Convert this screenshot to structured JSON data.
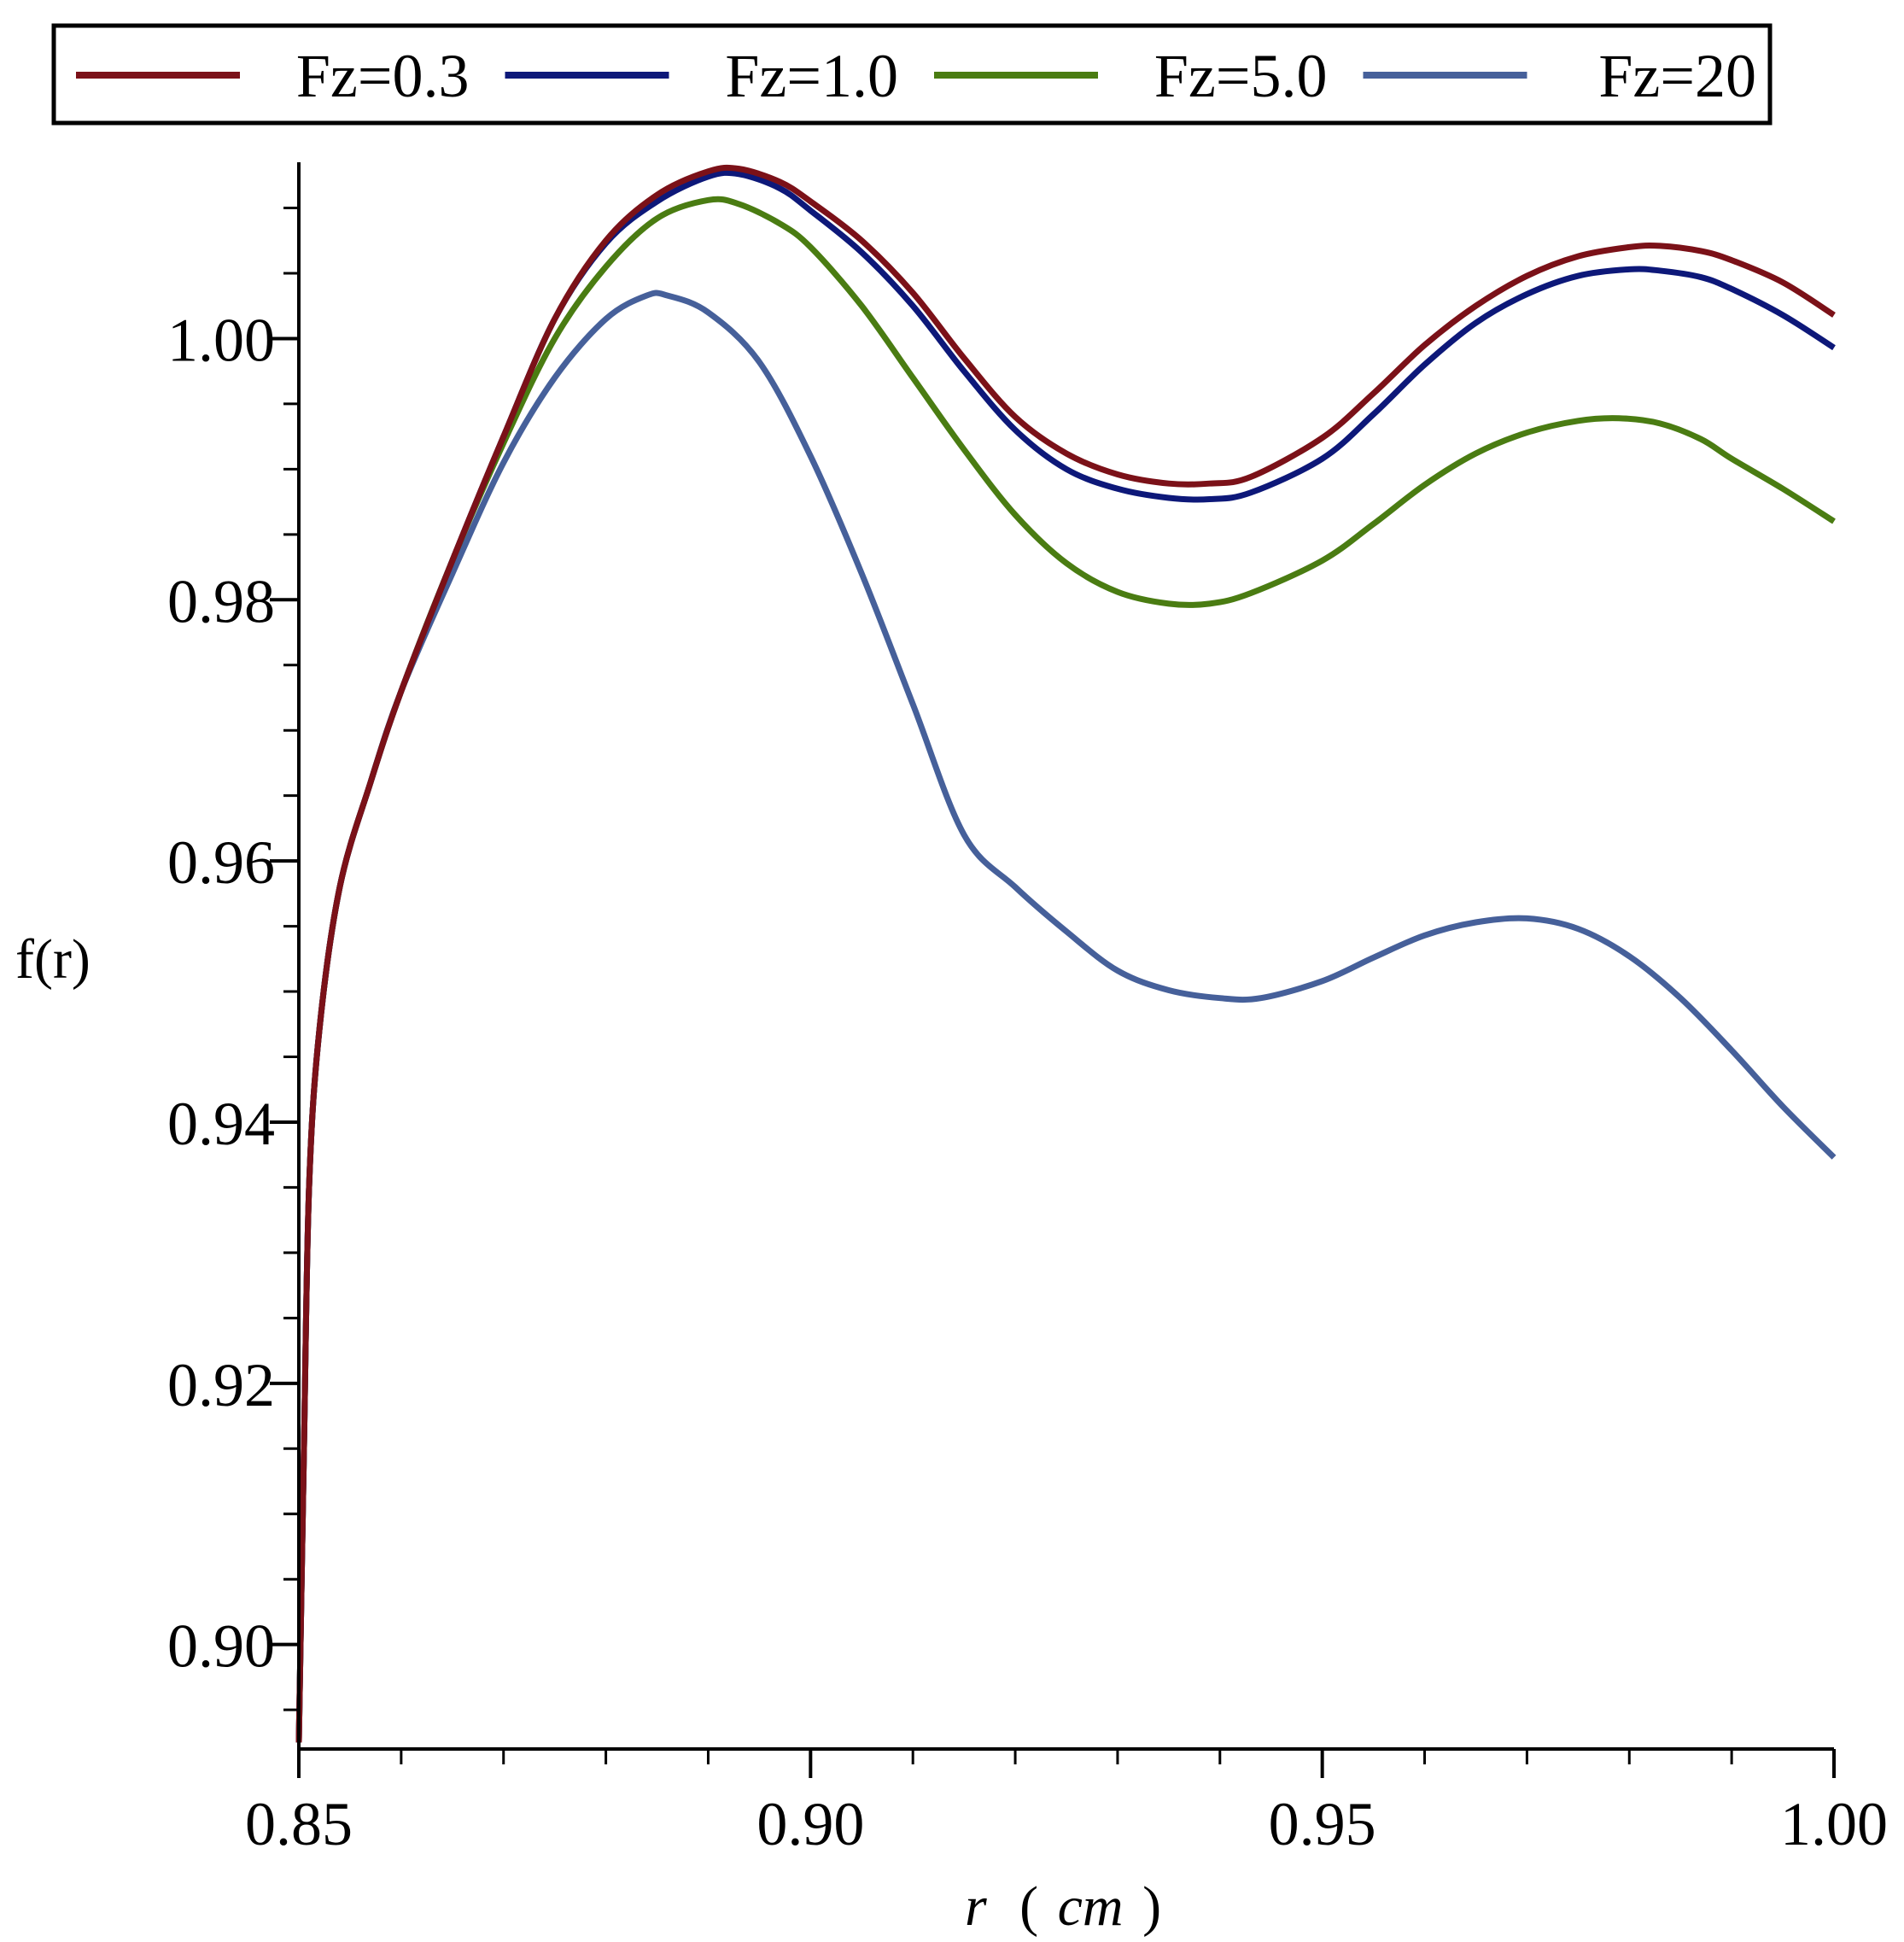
{
  "chart_data": {
    "type": "line",
    "xlabel": "r (cm)",
    "xlabel_parts": [
      "r",
      "(",
      "cm",
      ")"
    ],
    "ylabel": "f(r)",
    "xlim": [
      0.85,
      1.0
    ],
    "ylim": [
      0.892,
      1.0135
    ],
    "x_ticks": [
      {
        "value": 0.85,
        "label": "0.85"
      },
      {
        "value": 0.9,
        "label": "0.90"
      },
      {
        "value": 0.95,
        "label": "0.95"
      },
      {
        "value": 1.0,
        "label": "1.00"
      }
    ],
    "y_ticks": [
      {
        "value": 0.9,
        "label": "0.90"
      },
      {
        "value": 0.92,
        "label": "0.92"
      },
      {
        "value": 0.94,
        "label": "0.94"
      },
      {
        "value": 0.96,
        "label": "0.96"
      },
      {
        "value": 0.98,
        "label": "0.98"
      },
      {
        "value": 1.0,
        "label": "1.00"
      }
    ],
    "x_minor_step": 0.01,
    "y_minor_step": 0.005,
    "legend_position": "top",
    "grid": false,
    "series": [
      {
        "name": "Fz=0.3",
        "color": "#7b1118",
        "points": [
          [
            0.85,
            0.8925
          ],
          [
            0.8505,
            0.915
          ],
          [
            0.851,
            0.935
          ],
          [
            0.852,
            0.947
          ],
          [
            0.854,
            0.958
          ],
          [
            0.857,
            0.966
          ],
          [
            0.86,
            0.973
          ],
          [
            0.865,
            0.983
          ],
          [
            0.87,
            0.9925
          ],
          [
            0.875,
            1.0015
          ],
          [
            0.88,
            1.0075
          ],
          [
            0.885,
            1.011
          ],
          [
            0.89,
            1.0128
          ],
          [
            0.893,
            1.013
          ],
          [
            0.897,
            1.012
          ],
          [
            0.9,
            1.0105
          ],
          [
            0.905,
            1.0075
          ],
          [
            0.91,
            1.0035
          ],
          [
            0.915,
            0.9985
          ],
          [
            0.92,
            0.994
          ],
          [
            0.925,
            0.9912
          ],
          [
            0.93,
            0.9896
          ],
          [
            0.935,
            0.9889
          ],
          [
            0.939,
            0.9889
          ],
          [
            0.943,
            0.9894
          ],
          [
            0.95,
            0.9924
          ],
          [
            0.955,
            0.9958
          ],
          [
            0.96,
            0.9995
          ],
          [
            0.965,
            1.0025
          ],
          [
            0.97,
            1.0048
          ],
          [
            0.975,
            1.0063
          ],
          [
            0.98,
            1.007
          ],
          [
            0.983,
            1.0071
          ],
          [
            0.987,
            1.0067
          ],
          [
            0.99,
            1.006
          ],
          [
            0.995,
            1.0043
          ],
          [
            1.0,
            1.0018
          ]
        ]
      },
      {
        "name": "Fz=1.0",
        "color": "#0d1879",
        "points": [
          [
            0.85,
            0.8925
          ],
          [
            0.8505,
            0.915
          ],
          [
            0.851,
            0.935
          ],
          [
            0.852,
            0.947
          ],
          [
            0.854,
            0.958
          ],
          [
            0.857,
            0.966
          ],
          [
            0.86,
            0.973
          ],
          [
            0.865,
            0.983
          ],
          [
            0.87,
            0.9925
          ],
          [
            0.875,
            1.0015
          ],
          [
            0.88,
            1.0073
          ],
          [
            0.885,
            1.0105
          ],
          [
            0.89,
            1.0124
          ],
          [
            0.893,
            1.0126
          ],
          [
            0.897,
            1.0115
          ],
          [
            0.9,
            1.0098
          ],
          [
            0.905,
            1.0066
          ],
          [
            0.91,
            1.0025
          ],
          [
            0.915,
            0.9975
          ],
          [
            0.92,
            0.993
          ],
          [
            0.925,
            0.99
          ],
          [
            0.93,
            0.9885
          ],
          [
            0.935,
            0.9878
          ],
          [
            0.939,
            0.9877
          ],
          [
            0.943,
            0.9882
          ],
          [
            0.95,
            0.9908
          ],
          [
            0.955,
            0.9942
          ],
          [
            0.96,
            0.998
          ],
          [
            0.965,
            1.0012
          ],
          [
            0.97,
            1.0034
          ],
          [
            0.975,
            1.0048
          ],
          [
            0.98,
            1.0053
          ],
          [
            0.983,
            1.0052
          ],
          [
            0.987,
            1.0047
          ],
          [
            0.99,
            1.0038
          ],
          [
            0.995,
            1.0018
          ],
          [
            1.0,
            0.9993
          ]
        ]
      },
      {
        "name": "Fz=5.0",
        "color": "#4a7c12",
        "points": [
          [
            0.85,
            0.8925
          ],
          [
            0.8505,
            0.915
          ],
          [
            0.851,
            0.935
          ],
          [
            0.852,
            0.947
          ],
          [
            0.854,
            0.958
          ],
          [
            0.857,
            0.966
          ],
          [
            0.86,
            0.973
          ],
          [
            0.865,
            0.983
          ],
          [
            0.87,
            0.992
          ],
          [
            0.875,
            1.0
          ],
          [
            0.88,
            1.0055
          ],
          [
            0.885,
            1.0092
          ],
          [
            0.89,
            1.0106
          ],
          [
            0.893,
            1.0103
          ],
          [
            0.897,
            1.0088
          ],
          [
            0.9,
            1.007
          ],
          [
            0.905,
            1.0025
          ],
          [
            0.91,
            0.997
          ],
          [
            0.915,
            0.9915
          ],
          [
            0.92,
            0.9865
          ],
          [
            0.925,
            0.9828
          ],
          [
            0.93,
            0.9806
          ],
          [
            0.935,
            0.9797
          ],
          [
            0.939,
            0.9797
          ],
          [
            0.943,
            0.9805
          ],
          [
            0.95,
            0.983
          ],
          [
            0.955,
            0.9858
          ],
          [
            0.96,
            0.9888
          ],
          [
            0.965,
            0.9912
          ],
          [
            0.97,
            0.9928
          ],
          [
            0.975,
            0.9937
          ],
          [
            0.979,
            0.9939
          ],
          [
            0.983,
            0.9935
          ],
          [
            0.987,
            0.9923
          ],
          [
            0.99,
            0.9908
          ],
          [
            0.995,
            0.9885
          ],
          [
            1.0,
            0.986
          ]
        ]
      },
      {
        "name": "Fz=20",
        "color": "#46609a",
        "points": [
          [
            0.85,
            0.8925
          ],
          [
            0.8505,
            0.915
          ],
          [
            0.851,
            0.935
          ],
          [
            0.852,
            0.947
          ],
          [
            0.854,
            0.958
          ],
          [
            0.857,
            0.966
          ],
          [
            0.86,
            0.973
          ],
          [
            0.865,
            0.982
          ],
          [
            0.87,
            0.9905
          ],
          [
            0.875,
            0.997
          ],
          [
            0.88,
            1.0015
          ],
          [
            0.884,
            1.0033
          ],
          [
            0.886,
            1.0033
          ],
          [
            0.89,
            1.002
          ],
          [
            0.895,
            0.9982
          ],
          [
            0.9,
            0.991
          ],
          [
            0.905,
            0.982
          ],
          [
            0.91,
            0.972
          ],
          [
            0.915,
            0.962
          ],
          [
            0.92,
            0.958
          ],
          [
            0.925,
            0.9546
          ],
          [
            0.93,
            0.9516
          ],
          [
            0.935,
            0.9501
          ],
          [
            0.94,
            0.9495
          ],
          [
            0.944,
            0.9495
          ],
          [
            0.95,
            0.9508
          ],
          [
            0.955,
            0.9526
          ],
          [
            0.96,
            0.9543
          ],
          [
            0.965,
            0.9553
          ],
          [
            0.97,
            0.9556
          ],
          [
            0.975,
            0.9548
          ],
          [
            0.98,
            0.9527
          ],
          [
            0.985,
            0.9495
          ],
          [
            0.99,
            0.9455
          ],
          [
            0.995,
            0.9412
          ],
          [
            1.0,
            0.9373
          ]
        ]
      }
    ]
  }
}
